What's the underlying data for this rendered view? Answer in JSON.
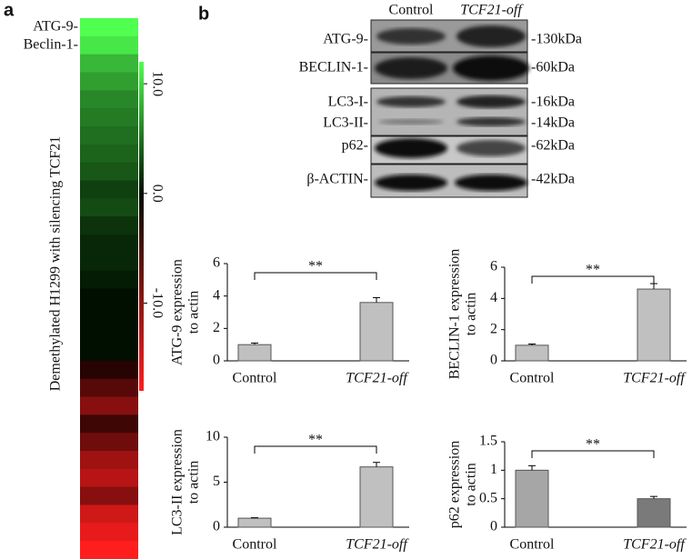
{
  "panel_labels": [
    "a",
    "b"
  ],
  "blot": {
    "columns": [
      "Control",
      "TCF21-off"
    ],
    "rows": [
      "ATG-9-",
      "BECLIN-1-",
      "LC3-I-",
      "LC3-II-",
      "p62-",
      "β-ACTIN-"
    ],
    "sizes": [
      "-130kDa",
      "-60kDa",
      "-16kDa",
      "-14kDa",
      "-62kDa",
      "-42kDa"
    ]
  },
  "chart_data": [
    {
      "type": "heatmap",
      "title": "Demethylated H1299 with silencing TCF21",
      "row_labels": [
        "ATG-9-",
        "Beclin-1-",
        null,
        null,
        null,
        null,
        null,
        null,
        null,
        null,
        null,
        null,
        null,
        null,
        null,
        null,
        null,
        null,
        null,
        null,
        null,
        null,
        null,
        null,
        null,
        null,
        null,
        null,
        null,
        null
      ],
      "values": [
        10,
        9,
        7,
        6,
        5,
        4.5,
        4,
        3.5,
        3,
        2,
        2.5,
        1.5,
        1,
        1,
        0.5,
        0,
        0,
        0,
        0,
        -1,
        -3,
        -5,
        -2,
        -4,
        -6,
        -7,
        -5,
        -8,
        -9,
        -10
      ],
      "clim": [
        -18,
        12
      ],
      "cticks": [
        {
          "value": 10,
          "label": "10.0"
        },
        {
          "value": 0,
          "label": "0.0"
        },
        {
          "value": -10,
          "label": "-10.0"
        }
      ]
    },
    {
      "type": "bar",
      "ylabel": [
        "ATG-9 expression",
        "to actin"
      ],
      "categories": [
        "Control",
        "TCF21-off"
      ],
      "values": [
        1,
        3.6
      ],
      "errors": [
        0.1,
        0.3
      ],
      "colors": [
        "#c0c0c0",
        "#c0c0c0"
      ],
      "ylim": [
        0,
        6
      ],
      "yticks": [
        0,
        2,
        4,
        6
      ],
      "annotation": "**"
    },
    {
      "type": "bar",
      "ylabel": [
        "BECLIN-1 expression",
        "to actin"
      ],
      "categories": [
        "Control",
        "TCF21-off"
      ],
      "values": [
        1,
        4.6
      ],
      "errors": [
        0.08,
        0.35
      ],
      "colors": [
        "#c0c0c0",
        "#c0c0c0"
      ],
      "ylim": [
        0,
        6
      ],
      "yticks": [
        0,
        2,
        4,
        6
      ],
      "annotation": "**"
    },
    {
      "type": "bar",
      "ylabel": [
        "LC3-II expression",
        "to actin"
      ],
      "categories": [
        "Control",
        "TCF21-off"
      ],
      "values": [
        1,
        6.7
      ],
      "errors": [
        0.05,
        0.5
      ],
      "colors": [
        "#c0c0c0",
        "#c0c0c0"
      ],
      "ylim": [
        0,
        10
      ],
      "yticks": [
        0,
        5,
        10
      ],
      "annotation": "**"
    },
    {
      "type": "bar",
      "ylabel": [
        "p62 expression",
        "to actin"
      ],
      "categories": [
        "Control",
        "TCF21-off"
      ],
      "values": [
        1,
        0.5
      ],
      "errors": [
        0.08,
        0.04
      ],
      "colors": [
        "#a6a6a6",
        "#7a7a7a"
      ],
      "ylim": [
        0,
        1.5
      ],
      "yticks": [
        0,
        0.5,
        1,
        1.5
      ],
      "annotation": "**"
    }
  ]
}
